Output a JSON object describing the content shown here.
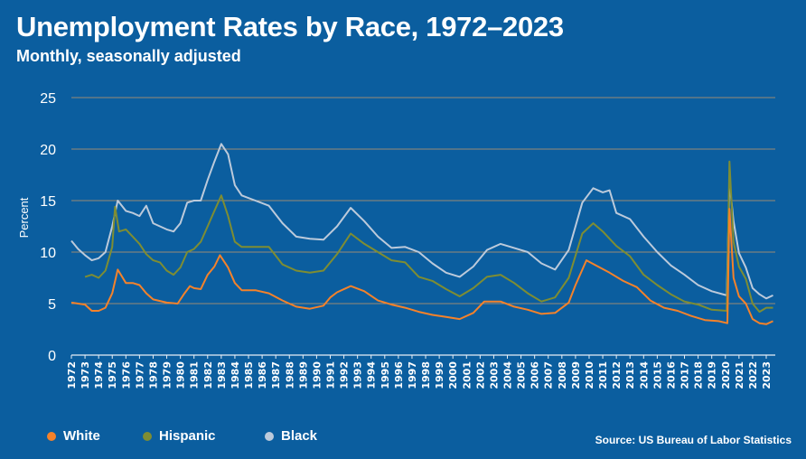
{
  "chart_data": {
    "type": "line",
    "title": "Unemployment Rates by Race, 1972–2023",
    "subtitle": "Monthly, seasonally adjusted",
    "xlabel": "",
    "ylabel": "Percent",
    "ylim": [
      0,
      25
    ],
    "yticks": [
      0,
      5,
      10,
      15,
      20,
      25
    ],
    "xlim": [
      1972,
      2023.6
    ],
    "xticks": [
      "1972",
      "1973",
      "1974",
      "1975",
      "1976",
      "1977",
      "1978",
      "1979",
      "1980",
      "1981",
      "1982",
      "1983",
      "1984",
      "1985",
      "1986",
      "1987",
      "1988",
      "1989",
      "1990",
      "1991",
      "1992",
      "1993",
      "1994",
      "1995",
      "1996",
      "1997",
      "1998",
      "1999",
      "2000",
      "2001",
      "2002",
      "2003",
      "2004",
      "2005",
      "2006",
      "2007",
      "2008",
      "2009",
      "2010",
      "2011",
      "2012",
      "2013",
      "2014",
      "2015",
      "2016",
      "2017",
      "2018",
      "2019",
      "2020",
      "2021",
      "2022",
      "2023"
    ],
    "grid": "horizontal",
    "legend": "bottom-left",
    "source": "Source: US Bureau of Labor Statistics",
    "series": [
      {
        "name": "White",
        "color": "#f5822a",
        "points": [
          [
            1972.0,
            5.1
          ],
          [
            1973.0,
            4.9
          ],
          [
            1973.5,
            4.3
          ],
          [
            1974.0,
            4.3
          ],
          [
            1974.5,
            4.6
          ],
          [
            1975.0,
            6.0
          ],
          [
            1975.4,
            8.3
          ],
          [
            1976.0,
            7.0
          ],
          [
            1976.5,
            7.0
          ],
          [
            1977.0,
            6.8
          ],
          [
            1977.5,
            6.0
          ],
          [
            1978.0,
            5.4
          ],
          [
            1979.0,
            5.1
          ],
          [
            1979.8,
            5.0
          ],
          [
            1980.3,
            6.0
          ],
          [
            1980.7,
            6.7
          ],
          [
            1981.0,
            6.5
          ],
          [
            1981.5,
            6.4
          ],
          [
            1982.0,
            7.8
          ],
          [
            1982.5,
            8.6
          ],
          [
            1982.9,
            9.7
          ],
          [
            1983.5,
            8.5
          ],
          [
            1984.0,
            7.0
          ],
          [
            1984.5,
            6.3
          ],
          [
            1985.5,
            6.3
          ],
          [
            1986.5,
            6.0
          ],
          [
            1987.5,
            5.3
          ],
          [
            1988.5,
            4.7
          ],
          [
            1989.5,
            4.5
          ],
          [
            1990.5,
            4.8
          ],
          [
            1991.0,
            5.6
          ],
          [
            1991.5,
            6.1
          ],
          [
            1992.5,
            6.7
          ],
          [
            1993.5,
            6.2
          ],
          [
            1994.5,
            5.3
          ],
          [
            1995.5,
            4.9
          ],
          [
            1996.5,
            4.6
          ],
          [
            1997.5,
            4.2
          ],
          [
            1998.5,
            3.9
          ],
          [
            1999.5,
            3.7
          ],
          [
            2000.5,
            3.5
          ],
          [
            2001.5,
            4.1
          ],
          [
            2002.3,
            5.2
          ],
          [
            2003.5,
            5.2
          ],
          [
            2004.5,
            4.7
          ],
          [
            2005.5,
            4.4
          ],
          [
            2006.5,
            4.0
          ],
          [
            2007.5,
            4.1
          ],
          [
            2008.5,
            5.1
          ],
          [
            2009.0,
            6.8
          ],
          [
            2009.8,
            9.2
          ],
          [
            2010.5,
            8.7
          ],
          [
            2011.5,
            8.0
          ],
          [
            2012.5,
            7.2
          ],
          [
            2013.5,
            6.6
          ],
          [
            2014.5,
            5.3
          ],
          [
            2015.5,
            4.6
          ],
          [
            2016.5,
            4.3
          ],
          [
            2017.5,
            3.8
          ],
          [
            2018.5,
            3.4
          ],
          [
            2019.5,
            3.3
          ],
          [
            2020.15,
            3.1
          ],
          [
            2020.3,
            14.2
          ],
          [
            2020.6,
            7.5
          ],
          [
            2021.0,
            5.7
          ],
          [
            2021.5,
            5.0
          ],
          [
            2022.0,
            3.5
          ],
          [
            2022.5,
            3.1
          ],
          [
            2023.0,
            3.0
          ],
          [
            2023.5,
            3.3
          ]
        ]
      },
      {
        "name": "Hispanic",
        "color": "#7e8d33",
        "points": [
          [
            1973.0,
            7.6
          ],
          [
            1973.5,
            7.8
          ],
          [
            1974.0,
            7.5
          ],
          [
            1974.5,
            8.2
          ],
          [
            1975.0,
            10.5
          ],
          [
            1975.2,
            14.4
          ],
          [
            1975.5,
            12.0
          ],
          [
            1976.0,
            12.2
          ],
          [
            1976.5,
            11.5
          ],
          [
            1977.0,
            10.8
          ],
          [
            1977.5,
            9.8
          ],
          [
            1978.0,
            9.2
          ],
          [
            1978.5,
            9.0
          ],
          [
            1979.0,
            8.2
          ],
          [
            1979.5,
            7.8
          ],
          [
            1980.0,
            8.5
          ],
          [
            1980.5,
            10.0
          ],
          [
            1981.0,
            10.3
          ],
          [
            1981.5,
            11.0
          ],
          [
            1982.0,
            12.5
          ],
          [
            1982.5,
            14.0
          ],
          [
            1983.0,
            15.5
          ],
          [
            1983.5,
            13.5
          ],
          [
            1984.0,
            11.0
          ],
          [
            1984.5,
            10.5
          ],
          [
            1985.5,
            10.5
          ],
          [
            1986.5,
            10.5
          ],
          [
            1987.5,
            8.8
          ],
          [
            1988.5,
            8.2
          ],
          [
            1989.5,
            8.0
          ],
          [
            1990.5,
            8.2
          ],
          [
            1991.5,
            9.8
          ],
          [
            1992.5,
            11.8
          ],
          [
            1993.5,
            10.8
          ],
          [
            1994.5,
            10.0
          ],
          [
            1995.5,
            9.2
          ],
          [
            1996.5,
            9.0
          ],
          [
            1997.5,
            7.6
          ],
          [
            1998.5,
            7.2
          ],
          [
            1999.5,
            6.4
          ],
          [
            2000.5,
            5.7
          ],
          [
            2001.5,
            6.5
          ],
          [
            2002.5,
            7.6
          ],
          [
            2003.5,
            7.8
          ],
          [
            2004.5,
            7.0
          ],
          [
            2005.5,
            6.0
          ],
          [
            2006.5,
            5.2
          ],
          [
            2007.5,
            5.6
          ],
          [
            2008.5,
            7.5
          ],
          [
            2009.5,
            11.8
          ],
          [
            2010.3,
            12.8
          ],
          [
            2011.0,
            12.0
          ],
          [
            2012.0,
            10.6
          ],
          [
            2013.0,
            9.6
          ],
          [
            2014.0,
            7.8
          ],
          [
            2015.0,
            6.8
          ],
          [
            2016.0,
            5.9
          ],
          [
            2017.0,
            5.2
          ],
          [
            2018.0,
            4.9
          ],
          [
            2019.0,
            4.4
          ],
          [
            2020.1,
            4.3
          ],
          [
            2020.3,
            18.8
          ],
          [
            2020.6,
            11.0
          ],
          [
            2021.0,
            8.6
          ],
          [
            2021.5,
            7.4
          ],
          [
            2022.0,
            5.0
          ],
          [
            2022.5,
            4.2
          ],
          [
            2023.0,
            4.6
          ],
          [
            2023.5,
            4.6
          ]
        ]
      },
      {
        "name": "Black",
        "color": "#bccadb",
        "points": [
          [
            1972.0,
            11.1
          ],
          [
            1972.5,
            10.3
          ],
          [
            1973.0,
            9.7
          ],
          [
            1973.5,
            9.2
          ],
          [
            1974.0,
            9.4
          ],
          [
            1974.5,
            10.0
          ],
          [
            1975.0,
            12.5
          ],
          [
            1975.4,
            15.0
          ],
          [
            1976.0,
            14.0
          ],
          [
            1976.5,
            13.8
          ],
          [
            1977.0,
            13.5
          ],
          [
            1977.5,
            14.5
          ],
          [
            1978.0,
            12.8
          ],
          [
            1978.5,
            12.5
          ],
          [
            1979.0,
            12.2
          ],
          [
            1979.5,
            12.0
          ],
          [
            1980.0,
            12.8
          ],
          [
            1980.5,
            14.8
          ],
          [
            1981.0,
            15.0
          ],
          [
            1981.5,
            15.0
          ],
          [
            1982.0,
            17.0
          ],
          [
            1982.5,
            18.8
          ],
          [
            1983.0,
            20.5
          ],
          [
            1983.5,
            19.5
          ],
          [
            1984.0,
            16.5
          ],
          [
            1984.5,
            15.5
          ],
          [
            1985.5,
            15.0
          ],
          [
            1986.5,
            14.5
          ],
          [
            1987.5,
            12.8
          ],
          [
            1988.5,
            11.5
          ],
          [
            1989.5,
            11.3
          ],
          [
            1990.5,
            11.2
          ],
          [
            1991.5,
            12.5
          ],
          [
            1992.5,
            14.3
          ],
          [
            1993.5,
            13.0
          ],
          [
            1994.5,
            11.5
          ],
          [
            1995.5,
            10.4
          ],
          [
            1996.5,
            10.5
          ],
          [
            1997.5,
            10.0
          ],
          [
            1998.5,
            8.9
          ],
          [
            1999.5,
            8.0
          ],
          [
            2000.5,
            7.6
          ],
          [
            2001.5,
            8.6
          ],
          [
            2002.5,
            10.2
          ],
          [
            2003.5,
            10.8
          ],
          [
            2004.5,
            10.4
          ],
          [
            2005.5,
            10.0
          ],
          [
            2006.5,
            8.9
          ],
          [
            2007.5,
            8.3
          ],
          [
            2008.5,
            10.2
          ],
          [
            2009.5,
            14.8
          ],
          [
            2010.3,
            16.2
          ],
          [
            2011.0,
            15.8
          ],
          [
            2011.5,
            16.0
          ],
          [
            2012.0,
            13.8
          ],
          [
            2013.0,
            13.2
          ],
          [
            2014.0,
            11.5
          ],
          [
            2015.0,
            10.0
          ],
          [
            2016.0,
            8.7
          ],
          [
            2017.0,
            7.8
          ],
          [
            2018.0,
            6.8
          ],
          [
            2019.0,
            6.2
          ],
          [
            2020.1,
            5.8
          ],
          [
            2020.3,
            16.8
          ],
          [
            2020.6,
            13.0
          ],
          [
            2021.0,
            9.9
          ],
          [
            2021.5,
            8.5
          ],
          [
            2022.0,
            6.5
          ],
          [
            2022.5,
            5.9
          ],
          [
            2023.0,
            5.5
          ],
          [
            2023.5,
            5.8
          ]
        ]
      }
    ]
  }
}
